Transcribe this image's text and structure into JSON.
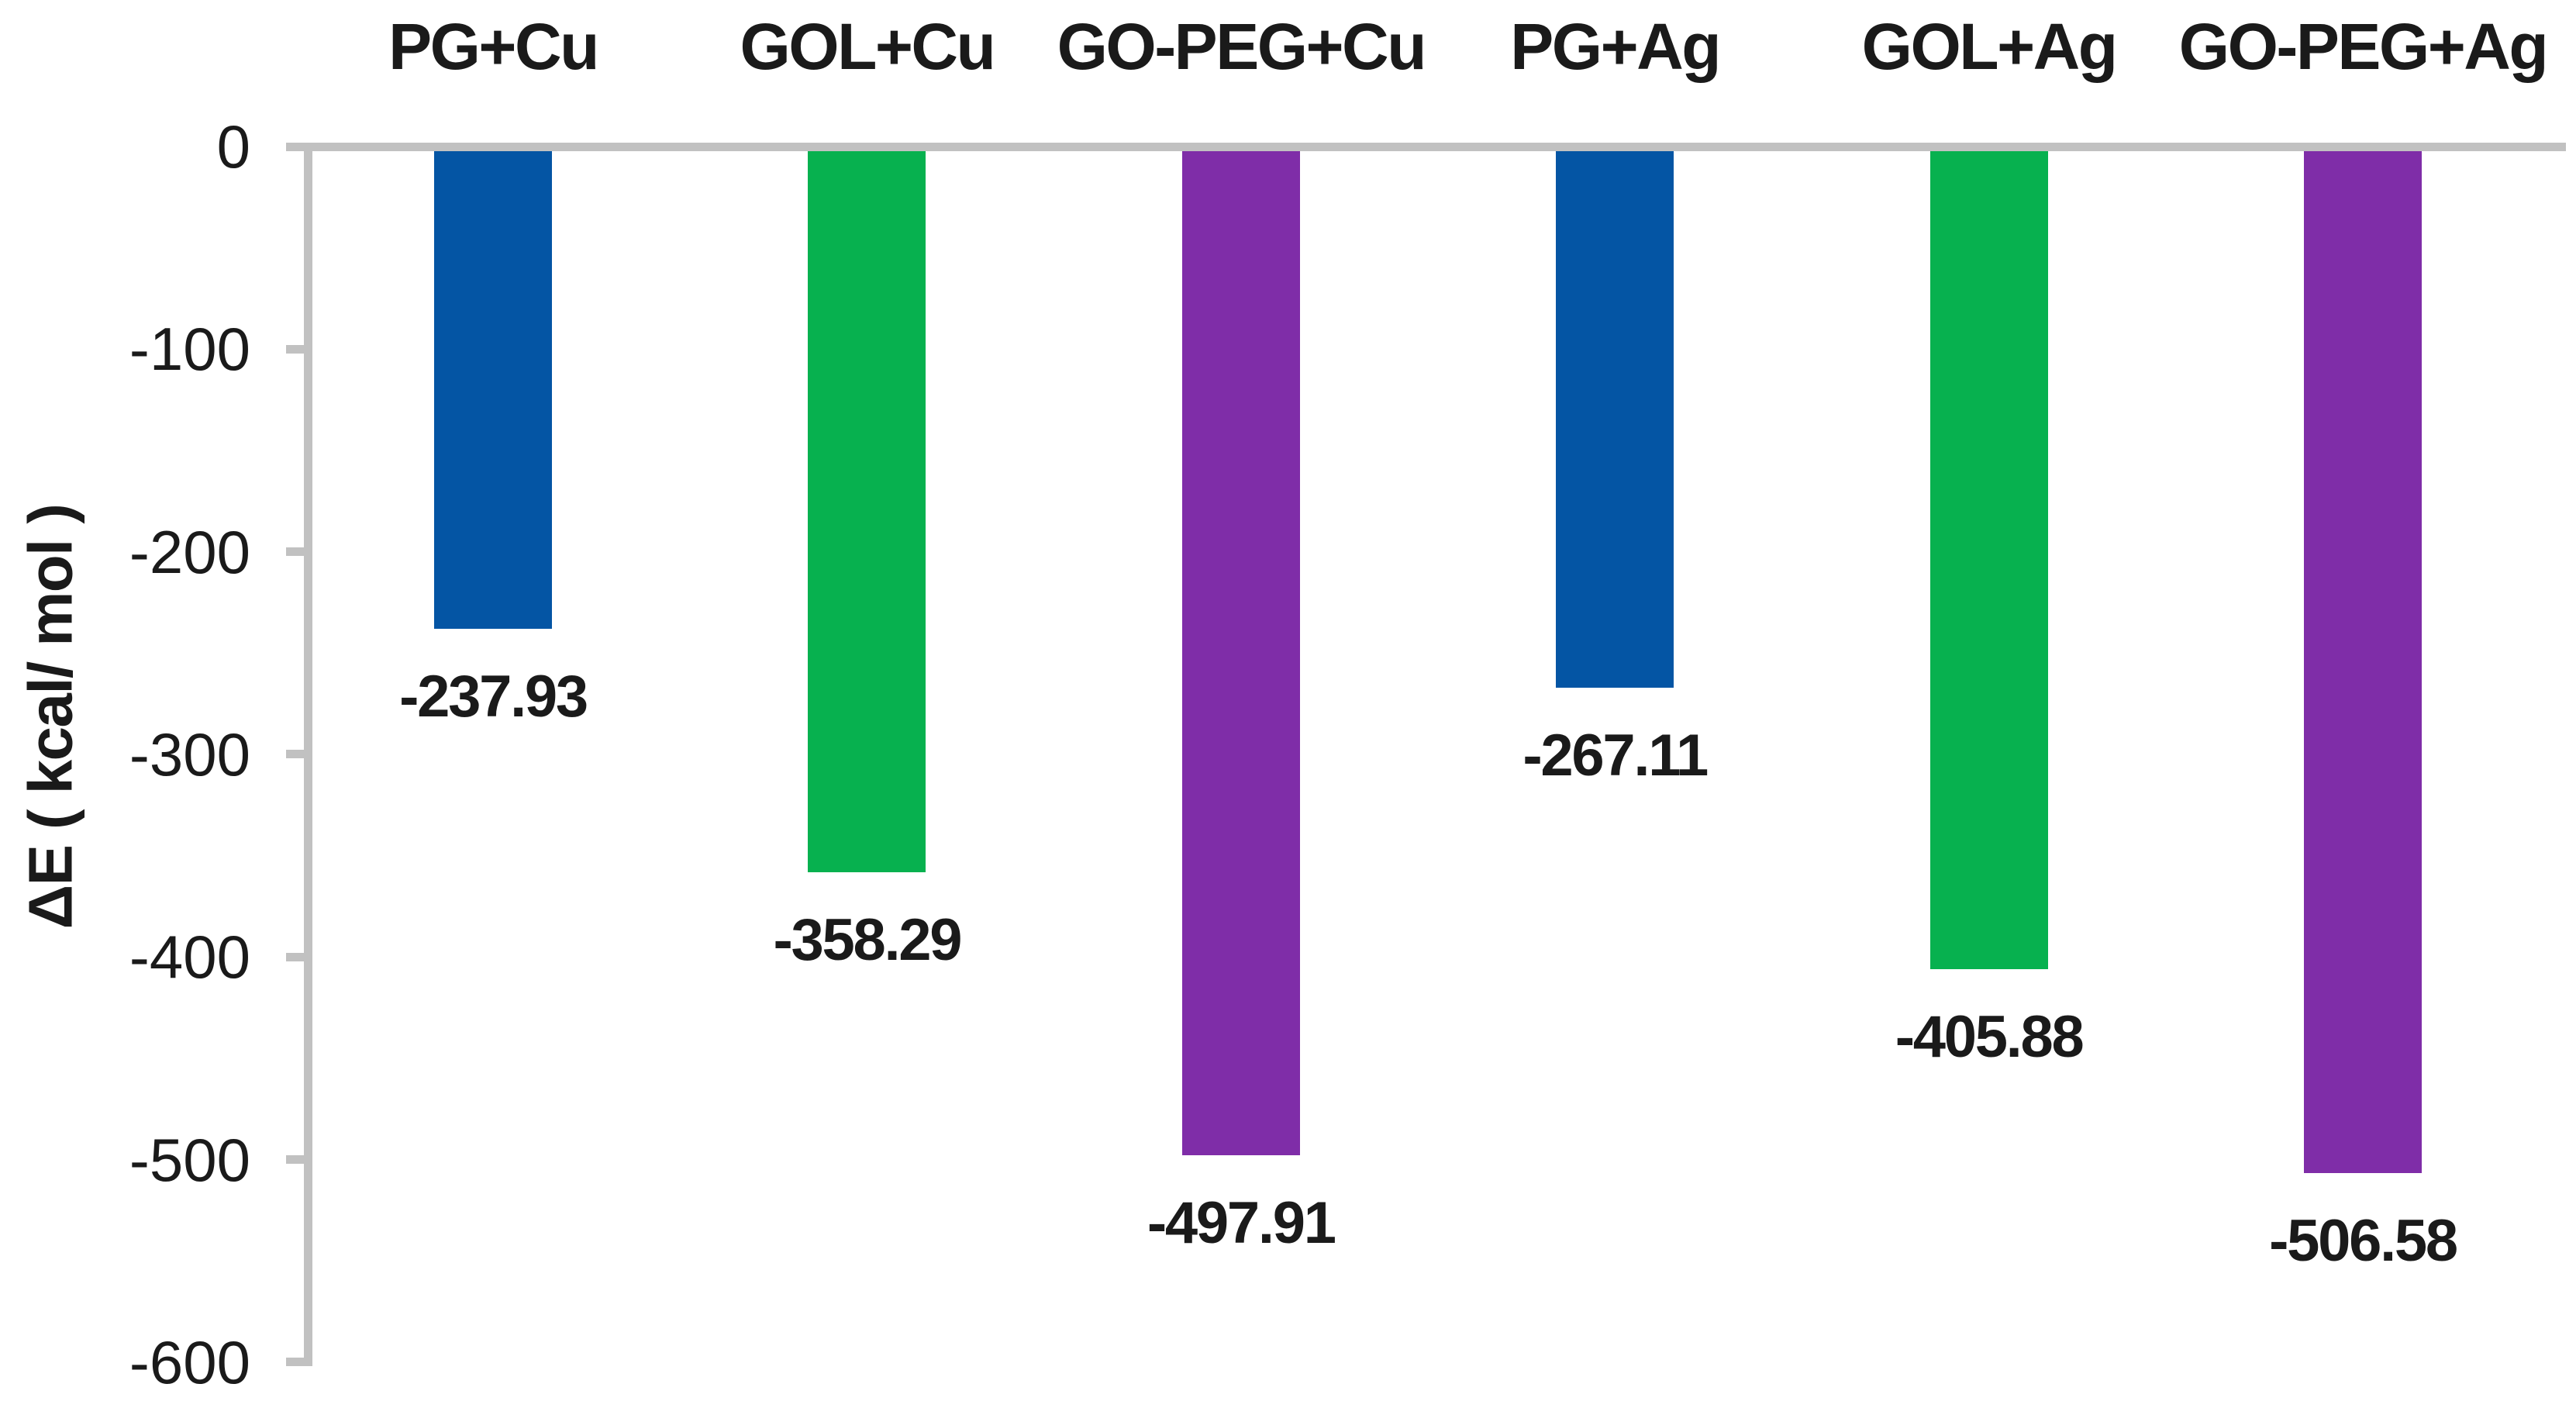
{
  "chart_data": {
    "type": "bar",
    "categories": [
      "PG+Cu",
      "GOL+Cu",
      "GO-PEG+Cu",
      "PG+Ag",
      "GOL+Ag",
      "GO-PEG+Ag"
    ],
    "values": [
      -237.93,
      -358.29,
      -497.91,
      -267.11,
      -405.88,
      -506.58
    ],
    "value_labels": [
      "-237.93",
      "-358.29",
      "-497.91",
      "-267.11",
      "-405.88",
      "-506.58"
    ],
    "bar_colors": [
      "#0455a4",
      "#07b14f",
      "#7f2da8",
      "#0455a4",
      "#07b14f",
      "#7f2da8"
    ],
    "series_colors": {
      "blue": "#0455a4",
      "green": "#07b14f",
      "purple": "#7f2da8"
    },
    "ylabel": "ΔE ( kcal/ mol )",
    "ylim": [
      -600,
      0
    ],
    "yticks": [
      0,
      -100,
      -200,
      -300,
      -400,
      -500,
      -600
    ],
    "ytick_labels": [
      "0",
      "-100",
      "-200",
      "-300",
      "-400",
      "-500",
      "-600"
    ],
    "category_labels_position": "top",
    "grid": "off",
    "legend": "none",
    "axis_color": "#c1c1c1",
    "text_color": "#1a1a1a",
    "background_color": "#ffffff"
  }
}
